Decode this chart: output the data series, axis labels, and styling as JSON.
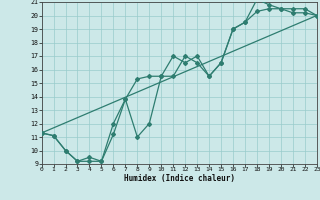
{
  "xlabel": "Humidex (Indice chaleur)",
  "bg_color": "#cce8e8",
  "line_color": "#2e7d70",
  "grid_color": "#99cccc",
  "xlim": [
    0,
    23
  ],
  "ylim": [
    9,
    21
  ],
  "xticks": [
    0,
    1,
    2,
    3,
    4,
    5,
    6,
    7,
    8,
    9,
    10,
    11,
    12,
    13,
    14,
    15,
    16,
    17,
    18,
    19,
    20,
    21,
    22,
    23
  ],
  "yticks": [
    9,
    10,
    11,
    12,
    13,
    14,
    15,
    16,
    17,
    18,
    19,
    20,
    21
  ],
  "line1_x": [
    0,
    1,
    2,
    3,
    4,
    5,
    6,
    7,
    8,
    9,
    10,
    11,
    12,
    13,
    14,
    15,
    16,
    17,
    18,
    19,
    20,
    21,
    22,
    23
  ],
  "line1_y": [
    11.3,
    11.1,
    10.0,
    9.2,
    9.2,
    9.2,
    11.2,
    13.8,
    11.0,
    12.0,
    15.5,
    15.5,
    17.0,
    16.5,
    15.5,
    16.5,
    19.0,
    19.5,
    20.3,
    20.5,
    20.5,
    20.2,
    20.2,
    20.0
  ],
  "line2_x": [
    0,
    1,
    2,
    3,
    4,
    5,
    6,
    7,
    8,
    9,
    10,
    11,
    12,
    13,
    14,
    15,
    16,
    17,
    18,
    19,
    20,
    21,
    22,
    23
  ],
  "line2_y": [
    11.3,
    11.1,
    10.0,
    9.2,
    9.5,
    9.2,
    12.0,
    13.8,
    15.3,
    15.5,
    15.5,
    17.0,
    16.5,
    17.0,
    15.5,
    16.5,
    19.0,
    19.5,
    21.2,
    20.8,
    20.5,
    20.5,
    20.5,
    20.0
  ],
  "line3_x": [
    0,
    23
  ],
  "line3_y": [
    11.3,
    20.0
  ]
}
